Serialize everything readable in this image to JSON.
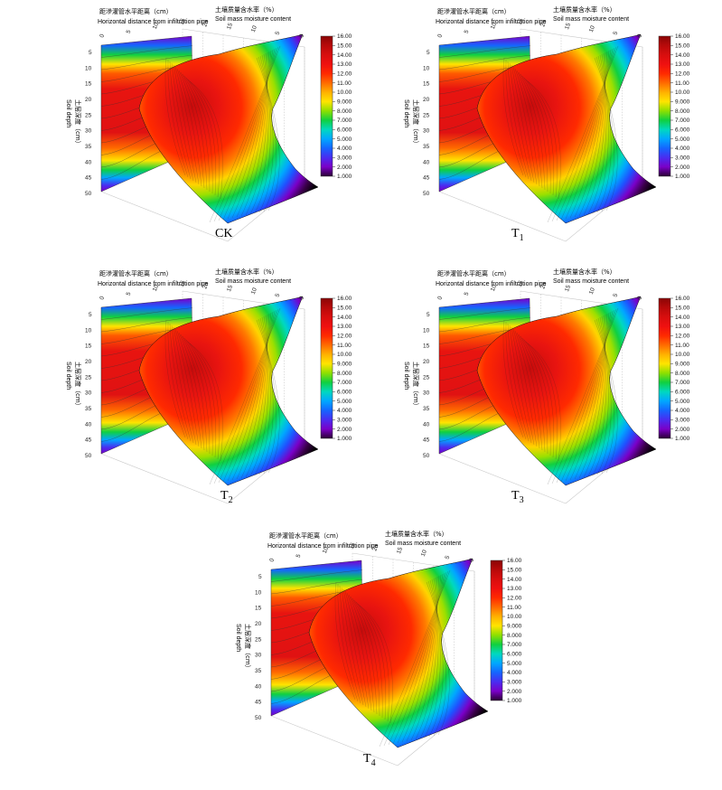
{
  "labels": {
    "top_cn": "距滲灌管水平距离（cm）",
    "top_en": "Horizontal distance from infiltration pipe",
    "right_cn": "土壤质量含水率（%）",
    "right_en": "Soil mass moisture content",
    "left_en": "Soil depth",
    "left_cn": "土层深度（cm）"
  },
  "colors": {
    "scale": [
      "#2a0033",
      "#7a00c8",
      "#4a2cf0",
      "#1565ff",
      "#00a8ff",
      "#00d8c0",
      "#10d040",
      "#8fe000",
      "#ffe400",
      "#ffb000",
      "#ff6a00",
      "#ff2a00",
      "#ef1010",
      "#d80e0e",
      "#b80a0a",
      "#8a0505"
    ]
  },
  "chart_data": [
    {
      "type": "heatmap",
      "panel": "CK",
      "caption_main": "CK",
      "caption_sub": "",
      "x_ticks": [
        "0",
        "5",
        "10",
        "15"
      ],
      "y_ticks": [
        "5",
        "10",
        "15",
        "20",
        "25",
        "30",
        "35",
        "40",
        "45",
        "50"
      ],
      "z_ticks": [
        "20",
        "15",
        "10",
        "5",
        "0"
      ],
      "colorbar": {
        "min": 1.0,
        "max": 16.0,
        "ticks": [
          "16.00",
          "15.00",
          "14.00",
          "13.00",
          "12.00",
          "11.00",
          "10.00",
          "9.000",
          "8.000",
          "7.000",
          "6.000",
          "5.000",
          "4.000",
          "3.000",
          "2.000",
          "1.000"
        ]
      },
      "xlim": [
        0,
        17
      ],
      "ylim": [
        0,
        50
      ],
      "zlim": [
        0,
        20
      ]
    },
    {
      "type": "heatmap",
      "panel": "T1",
      "caption_main": "T",
      "caption_sub": "1",
      "x_ticks": [
        "0",
        "5",
        "10",
        "15"
      ],
      "y_ticks": [
        "5",
        "10",
        "15",
        "20",
        "25",
        "30",
        "35",
        "40",
        "45",
        "50"
      ],
      "z_ticks": [
        "20",
        "15",
        "10",
        "5",
        "0"
      ],
      "colorbar": {
        "min": 1.0,
        "max": 16.0,
        "ticks": [
          "16.00",
          "15.00",
          "14.00",
          "13.00",
          "12.00",
          "11.00",
          "10.00",
          "9.000",
          "8.000",
          "7.000",
          "6.000",
          "5.000",
          "4.000",
          "3.000",
          "2.000",
          "1.000"
        ]
      },
      "xlim": [
        0,
        17
      ],
      "ylim": [
        0,
        50
      ],
      "zlim": [
        0,
        20
      ]
    },
    {
      "type": "heatmap",
      "panel": "T2",
      "caption_main": "T",
      "caption_sub": "2",
      "x_ticks": [
        "0",
        "5",
        "10",
        "15"
      ],
      "y_ticks": [
        "5",
        "10",
        "15",
        "20",
        "25",
        "30",
        "35",
        "40",
        "45",
        "50"
      ],
      "z_ticks": [
        "20",
        "15",
        "10",
        "5",
        "0"
      ],
      "colorbar": {
        "min": 1.0,
        "max": 16.0,
        "ticks": [
          "16.00",
          "15.00",
          "14.00",
          "13.00",
          "12.00",
          "11.00",
          "10.00",
          "9.000",
          "8.000",
          "7.000",
          "6.000",
          "5.000",
          "4.000",
          "3.000",
          "2.000",
          "1.000"
        ]
      },
      "xlim": [
        0,
        17
      ],
      "ylim": [
        0,
        50
      ],
      "zlim": [
        0,
        20
      ]
    },
    {
      "type": "heatmap",
      "panel": "T3",
      "caption_main": "T",
      "caption_sub": "3",
      "x_ticks": [
        "0",
        "5",
        "10",
        "15"
      ],
      "y_ticks": [
        "5",
        "10",
        "15",
        "20",
        "25",
        "30",
        "35",
        "40",
        "45",
        "50"
      ],
      "z_ticks": [
        "20",
        "15",
        "10",
        "5",
        "0"
      ],
      "colorbar": {
        "min": 1.0,
        "max": 16.0,
        "ticks": [
          "16.00",
          "15.00",
          "14.00",
          "13.00",
          "12.00",
          "11.00",
          "10.00",
          "9.000",
          "8.000",
          "7.000",
          "6.000",
          "5.000",
          "4.000",
          "3.000",
          "2.000",
          "1.000"
        ]
      },
      "xlim": [
        0,
        17
      ],
      "ylim": [
        0,
        50
      ],
      "zlim": [
        0,
        20
      ]
    },
    {
      "type": "heatmap",
      "panel": "T4",
      "caption_main": "T",
      "caption_sub": "4",
      "x_ticks": [
        "0",
        "5",
        "10",
        "15"
      ],
      "y_ticks": [
        "5",
        "10",
        "15",
        "20",
        "25",
        "30",
        "35",
        "40",
        "45",
        "50"
      ],
      "z_ticks": [
        "20",
        "15",
        "10",
        "5",
        "0"
      ],
      "colorbar": {
        "min": 1.0,
        "max": 16.0,
        "ticks": [
          "16.00",
          "15.00",
          "14.00",
          "13.00",
          "12.00",
          "11.00",
          "10.00",
          "9.000",
          "8.000",
          "7.000",
          "6.000",
          "5.000",
          "4.000",
          "3.000",
          "2.000",
          "1.000"
        ]
      },
      "xlim": [
        0,
        17
      ],
      "ylim": [
        0,
        50
      ],
      "zlim": [
        0,
        20
      ]
    }
  ]
}
